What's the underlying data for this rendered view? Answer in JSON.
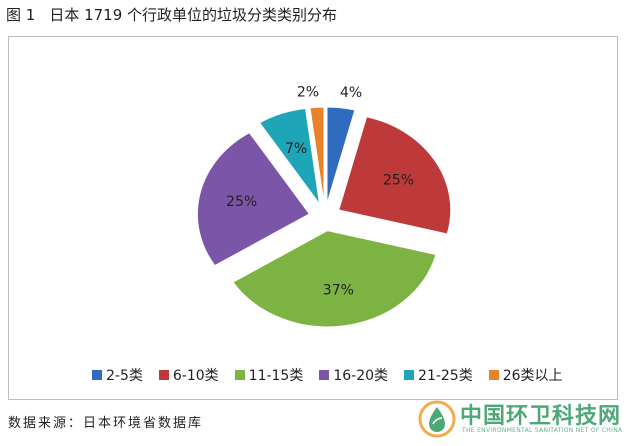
{
  "figure": {
    "label": "图 1",
    "title": "日本 1719 个行政单位的垃圾分类类别分布"
  },
  "chart_data": {
    "type": "pie",
    "title": "",
    "categories": [
      "2-5类",
      "6-10类",
      "11-15类",
      "16-20类",
      "21-25类",
      "26类以上"
    ],
    "values": [
      4,
      25,
      37,
      25,
      7,
      2
    ],
    "value_labels": [
      "4%",
      "25%",
      "37%",
      "25%",
      "7%",
      "2%"
    ],
    "colors": [
      "#2f6bbf",
      "#be3a3a",
      "#7cb342",
      "#7b56a8",
      "#1ea5b8",
      "#e8822b"
    ],
    "exploded": true,
    "legend": "bottom"
  },
  "source": {
    "text": "数据来源：日本环境省数据库"
  },
  "watermark": {
    "title": "中国环卫科技网",
    "subtitle": "THE ENVIRONMENTAL SANITATION NET OF CHINA",
    "logo_icon": "water-drop-leaf-icon"
  }
}
